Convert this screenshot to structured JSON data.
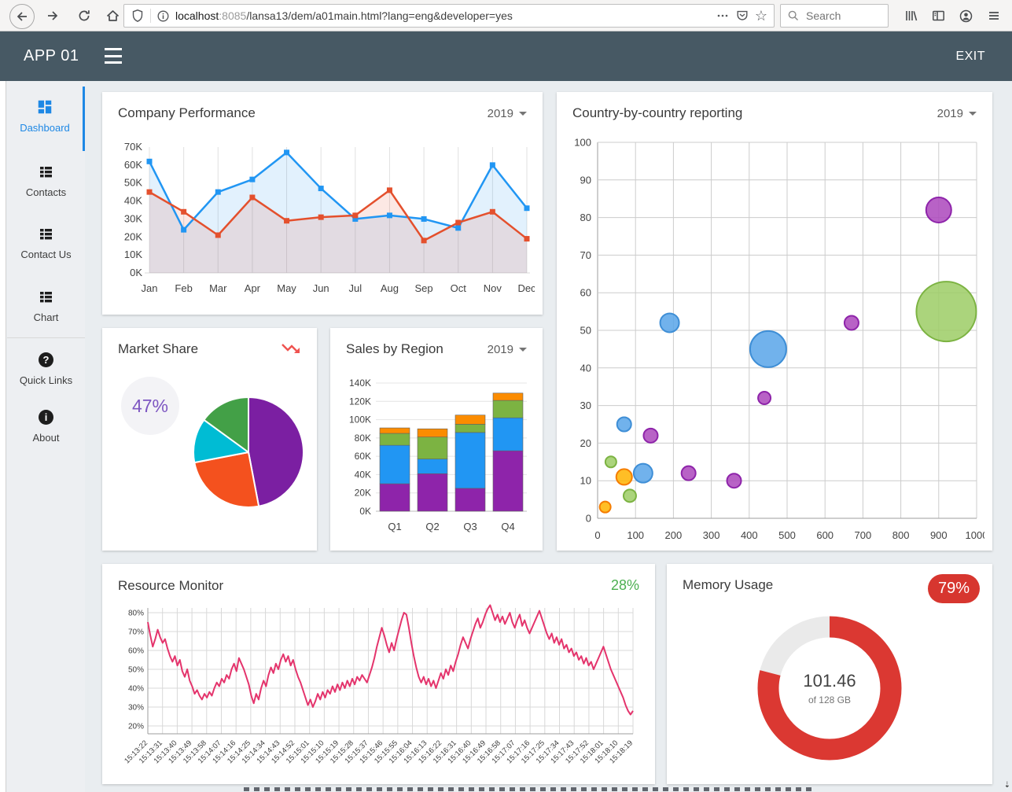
{
  "browser": {
    "url_domain": "localhost",
    "url_port": ":8085",
    "url_path": "/lansa13/dem/a01main.html?lang=eng&developer=yes",
    "search_placeholder": "Search"
  },
  "header": {
    "app_title": "APP 01",
    "exit_label": "EXIT"
  },
  "sidebar": {
    "items": [
      {
        "label": "Dashboard",
        "active": true
      },
      {
        "label": "Contacts",
        "active": false
      },
      {
        "label": "Contact Us",
        "active": false
      },
      {
        "label": "Chart",
        "active": false
      },
      {
        "label": "Quick Links",
        "active": false
      },
      {
        "label": "About",
        "active": false
      }
    ]
  },
  "cards": {
    "company_performance": {
      "title": "Company Performance",
      "year": "2019",
      "chart_data": {
        "type": "line",
        "categories": [
          "Jan",
          "Feb",
          "Mar",
          "Apr",
          "May",
          "Jun",
          "Jul",
          "Aug",
          "Sep",
          "Oct",
          "Nov",
          "Dec"
        ],
        "y_ticks": [
          "70K",
          "60K",
          "50K",
          "40K",
          "30K",
          "20K",
          "10K",
          "0K"
        ],
        "ymax": 70,
        "series": [
          {
            "name": "blue",
            "color": "#2196F3",
            "fill": "rgba(33,150,243,0.13)",
            "values": [
              62,
              24,
              45,
              52,
              67,
              47,
              30,
              32,
              30,
              25,
              60,
              36
            ]
          },
          {
            "name": "red",
            "color": "#E4502D",
            "fill": "rgba(228,80,45,0.13)",
            "values": [
              45,
              34,
              21,
              42,
              29,
              31,
              32,
              46,
              18,
              28,
              34,
              19
            ]
          }
        ]
      }
    },
    "country_reporting": {
      "title": "Country-by-country reporting",
      "year": "2019",
      "chart_data": {
        "type": "scatter",
        "xlim": [
          0,
          1000
        ],
        "ylim": [
          0,
          100
        ],
        "x_ticks": [
          "0",
          "100",
          "200",
          "300",
          "400",
          "500",
          "600",
          "700",
          "800",
          "900",
          "1000"
        ],
        "y_ticks": [
          "100",
          "90",
          "80",
          "70",
          "60",
          "50",
          "40",
          "30",
          "20",
          "10",
          "0"
        ],
        "colors": {
          "blue": {
            "fill": "#58A5E9",
            "stroke": "#3E8ED6"
          },
          "purple": {
            "fill": "#AB47BC",
            "stroke": "#8E24AA"
          },
          "green": {
            "fill": "#9CCC65",
            "stroke": "#7CB342"
          },
          "orange": {
            "fill": "#FFB300",
            "stroke": "#F57C00"
          }
        },
        "bubbles": [
          {
            "x": 20,
            "y": 3,
            "r": 7,
            "c": "orange"
          },
          {
            "x": 35,
            "y": 15,
            "r": 7,
            "c": "green"
          },
          {
            "x": 70,
            "y": 11,
            "r": 10,
            "c": "orange"
          },
          {
            "x": 70,
            "y": 25,
            "r": 9,
            "c": "blue"
          },
          {
            "x": 85,
            "y": 6,
            "r": 8,
            "c": "green"
          },
          {
            "x": 120,
            "y": 12,
            "r": 12,
            "c": "blue"
          },
          {
            "x": 140,
            "y": 22,
            "r": 9,
            "c": "purple"
          },
          {
            "x": 190,
            "y": 52,
            "r": 12,
            "c": "blue"
          },
          {
            "x": 240,
            "y": 12,
            "r": 9,
            "c": "purple"
          },
          {
            "x": 360,
            "y": 10,
            "r": 9,
            "c": "purple"
          },
          {
            "x": 440,
            "y": 32,
            "r": 8,
            "c": "purple"
          },
          {
            "x": 450,
            "y": 45,
            "r": 23,
            "c": "blue"
          },
          {
            "x": 670,
            "y": 52,
            "r": 9,
            "c": "purple"
          },
          {
            "x": 900,
            "y": 82,
            "r": 16,
            "c": "purple"
          },
          {
            "x": 920,
            "y": 55,
            "r": 38,
            "c": "green"
          }
        ]
      }
    },
    "market_share": {
      "title": "Market Share",
      "percent_label": "47%",
      "chart_data": {
        "type": "pie",
        "slices": [
          {
            "value": 47,
            "color": "#7B1FA2"
          },
          {
            "value": 25,
            "color": "#F4511E"
          },
          {
            "value": 13,
            "color": "#00BCD4"
          },
          {
            "value": 15,
            "color": "#43A047"
          }
        ]
      }
    },
    "sales_by_region": {
      "title": "Sales by Region",
      "year": "2019",
      "chart_data": {
        "type": "bar",
        "categories": [
          "Q1",
          "Q2",
          "Q3",
          "Q4"
        ],
        "y_ticks": [
          "140K",
          "120K",
          "100K",
          "80K",
          "60K",
          "40K",
          "20K",
          "0K"
        ],
        "ymax": 140,
        "series": [
          {
            "name": "purple",
            "color": "#8E24AA",
            "values": [
              30,
              41,
              25,
              66
            ]
          },
          {
            "name": "blue",
            "color": "#2196F3",
            "values": [
              42,
              16,
              61,
              36
            ]
          },
          {
            "name": "green",
            "color": "#7CB342",
            "values": [
              13,
              24,
              9,
              19
            ]
          },
          {
            "name": "orange",
            "color": "#FB8C00",
            "values": [
              6,
              9,
              10,
              8
            ]
          }
        ]
      }
    },
    "resource_monitor": {
      "title": "Resource Monitor",
      "percent_label": "28%",
      "chart_data": {
        "type": "line",
        "color": "#E4346C",
        "ylim": [
          20,
          80
        ],
        "y_ticks": [
          "80%",
          "70%",
          "60%",
          "50%",
          "40%",
          "30%",
          "20%"
        ],
        "x_labels": [
          "15:13:22",
          "15:13:31",
          "15:13:40",
          "15:13:49",
          "15:13:58",
          "15:14:07",
          "15:14:16",
          "15:14:25",
          "15:14:34",
          "15:14:43",
          "15:14:52",
          "15:15:01",
          "15:15:10",
          "15:15:19",
          "15:15:28",
          "15:15:37",
          "15:15:46",
          "15:15:55",
          "15:16:04",
          "15:16:13",
          "15:16:22",
          "15:16:31",
          "15:16:40",
          "15:16:49",
          "15:16:58",
          "15:17:07",
          "15:17:16",
          "15:17:25",
          "15:17:34",
          "15:17:43",
          "15:17:52",
          "15:18:01",
          "15:18:10",
          "15:18:19"
        ],
        "values": [
          75,
          68,
          62,
          66,
          71,
          67,
          64,
          66,
          61,
          57,
          54,
          57,
          52,
          55,
          49,
          46,
          50,
          44,
          41,
          37,
          39,
          36,
          34,
          37,
          35,
          38,
          36,
          40,
          43,
          41,
          45,
          43,
          47,
          45,
          50,
          53,
          49,
          56,
          53,
          50,
          46,
          42,
          36,
          32,
          37,
          34,
          40,
          44,
          41,
          47,
          51,
          48,
          53,
          50,
          55,
          58,
          54,
          57,
          52,
          55,
          50,
          46,
          43,
          39,
          35,
          31,
          34,
          30,
          33,
          37,
          34,
          38,
          35,
          39,
          37,
          41,
          38,
          42,
          39,
          43,
          40,
          44,
          41,
          45,
          42,
          46,
          44,
          47,
          45,
          43,
          47,
          51,
          56,
          62,
          67,
          72,
          68,
          63,
          59,
          64,
          60,
          66,
          71,
          76,
          80,
          79,
          72,
          64,
          57,
          51,
          46,
          43,
          46,
          42,
          45,
          41,
          44,
          40,
          44,
          48,
          45,
          50,
          47,
          52,
          49,
          54,
          58,
          63,
          67,
          64,
          61,
          66,
          70,
          74,
          77,
          72,
          75,
          79,
          82,
          84,
          80,
          76,
          79,
          75,
          78,
          74,
          77,
          80,
          75,
          72,
          76,
          79,
          73,
          76,
          72,
          69,
          72,
          75,
          78,
          81,
          77,
          73,
          69,
          66,
          69,
          64,
          67,
          63,
          66,
          61,
          63,
          59,
          61,
          57,
          59,
          55,
          57,
          53,
          56,
          52,
          54,
          50,
          53,
          56,
          59,
          62,
          58,
          54,
          50,
          47,
          44,
          41,
          38,
          35,
          31,
          28,
          26,
          28
        ]
      }
    },
    "memory_usage": {
      "title": "Memory Usage",
      "percent_label": "79%",
      "chart_data": {
        "type": "donut",
        "percent": 79,
        "color": "#DB3832",
        "track": "#EAEAEA",
        "center_value": "101.46",
        "center_sub": "of 128 GB"
      }
    }
  }
}
